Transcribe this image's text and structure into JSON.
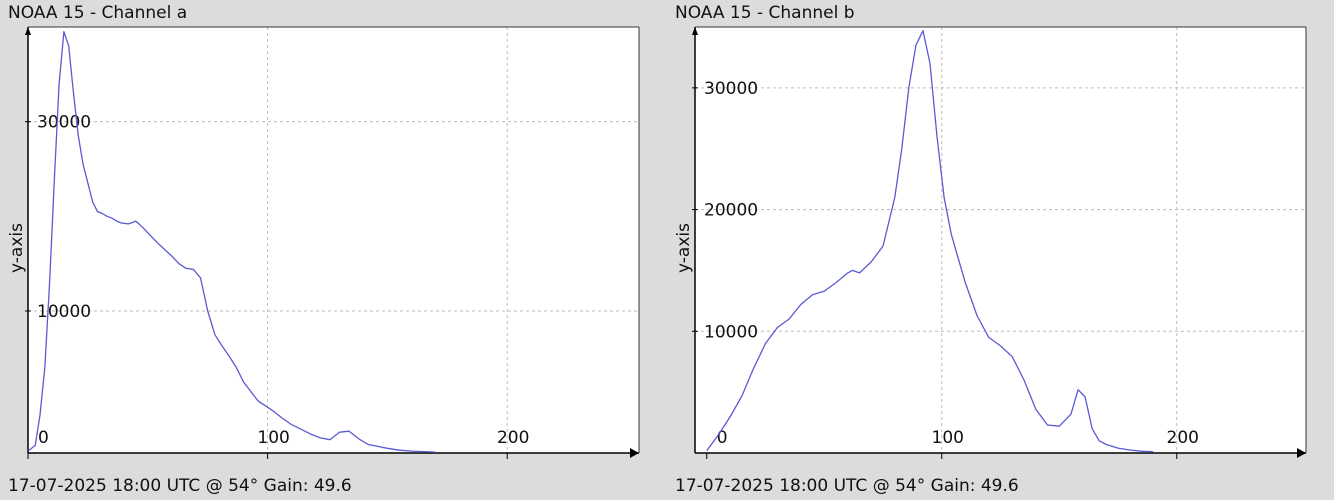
{
  "chart_data": [
    {
      "type": "line",
      "title": "NOAA 15 - Channel a",
      "footer": "17-07-2025 18:00 UTC @ 54° Gain: 49.6",
      "xlabel": "",
      "ylabel": "y-axis",
      "xlim": [
        0,
        255
      ],
      "ylim": [
        -5000,
        40000
      ],
      "grid": true,
      "xticks": [
        0,
        100,
        200
      ],
      "xtick_labels": [
        "0",
        "100",
        "200"
      ],
      "yticks": [
        30000,
        10000
      ],
      "ytick_labels": [
        "30000",
        "10000"
      ],
      "line_color": "#5a5ad2",
      "series": [
        {
          "x": [
            0,
            3,
            5,
            7,
            9,
            11,
            13,
            15,
            17,
            19,
            21,
            23,
            25,
            27,
            29,
            31,
            33,
            35,
            37,
            39,
            42,
            45,
            48,
            51,
            54,
            57,
            60,
            63,
            66,
            69,
            72,
            75,
            78,
            81,
            84,
            87,
            90,
            93,
            96,
            99,
            102,
            106,
            110,
            114,
            118,
            122,
            126,
            130,
            134,
            138,
            142,
            146,
            150,
            155,
            160,
            165,
            170
          ],
          "values": [
            -4800,
            -4200,
            -1000,
            4000,
            13000,
            24000,
            34000,
            39500,
            38000,
            33000,
            28500,
            25500,
            23500,
            21500,
            20500,
            20300,
            20000,
            19800,
            19500,
            19300,
            19200,
            19500,
            18800,
            18000,
            17200,
            16500,
            15800,
            15000,
            14500,
            14400,
            13500,
            10000,
            7500,
            6300,
            5200,
            4000,
            2500,
            1500,
            500,
            0,
            -500,
            -1300,
            -2000,
            -2500,
            -3000,
            -3400,
            -3600,
            -2800,
            -2700,
            -3500,
            -4100,
            -4300,
            -4500,
            -4700,
            -4800,
            -4850,
            -4900
          ]
        }
      ]
    },
    {
      "type": "line",
      "title": "NOAA 15 - Channel b",
      "footer": "17-07-2025 18:00 UTC @ 54° Gain: 49.6",
      "xlabel": "",
      "ylabel": "y-axis",
      "xlim": [
        -5,
        255
      ],
      "ylim": [
        0,
        35000
      ],
      "grid": true,
      "xticks": [
        0,
        100,
        200
      ],
      "xtick_labels": [
        "0",
        "100",
        "200"
      ],
      "yticks": [
        30000,
        20000,
        10000
      ],
      "ytick_labels": [
        "30000",
        "20000",
        "10000"
      ],
      "line_color": "#5a5ad2",
      "series": [
        {
          "x": [
            0,
            5,
            10,
            15,
            20,
            25,
            30,
            35,
            40,
            45,
            50,
            55,
            60,
            62,
            65,
            70,
            75,
            80,
            83,
            86,
            89,
            92,
            95,
            98,
            101,
            104,
            107,
            110,
            115,
            120,
            125,
            130,
            135,
            140,
            145,
            150,
            155,
            158,
            161,
            164,
            167,
            170,
            175,
            180,
            185,
            190
          ],
          "values": [
            200,
            1500,
            3000,
            4700,
            7000,
            9000,
            10300,
            11000,
            12200,
            13000,
            13300,
            14000,
            14800,
            15000,
            14800,
            15700,
            17000,
            21000,
            25000,
            30000,
            33500,
            34700,
            32000,
            26000,
            21000,
            18000,
            16000,
            14000,
            11300,
            9500,
            8800,
            7900,
            6000,
            3600,
            2300,
            2200,
            3200,
            5200,
            4600,
            2000,
            1000,
            700,
            400,
            250,
            150,
            100
          ]
        }
      ]
    }
  ]
}
